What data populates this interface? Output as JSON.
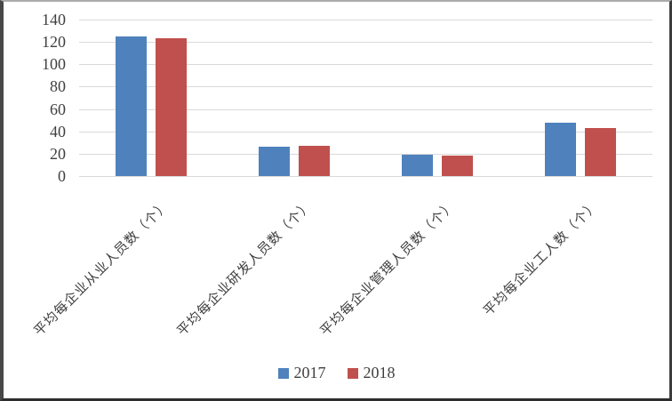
{
  "chart_data": {
    "type": "bar",
    "categories": [
      "平均每企业从业人员数（个）",
      "平均每企业研发人员数（个）",
      "平均每企业管理人员数（个）",
      "平均每企业工人数（个）"
    ],
    "series": [
      {
        "name": "2017",
        "color": "#4f81bd",
        "values": [
          125,
          26,
          19,
          48
        ]
      },
      {
        "name": "2018",
        "color": "#c0504d",
        "values": [
          123,
          27,
          18,
          43
        ]
      }
    ],
    "ylim": [
      0,
      140
    ],
    "yticks": [
      0,
      20,
      40,
      60,
      80,
      100,
      120,
      140
    ],
    "grid": true,
    "legend_position": "bottom",
    "category_label_rotation_deg": 45,
    "gridline_color": "#d9d9d9",
    "text_color": "#3f3f3f"
  }
}
